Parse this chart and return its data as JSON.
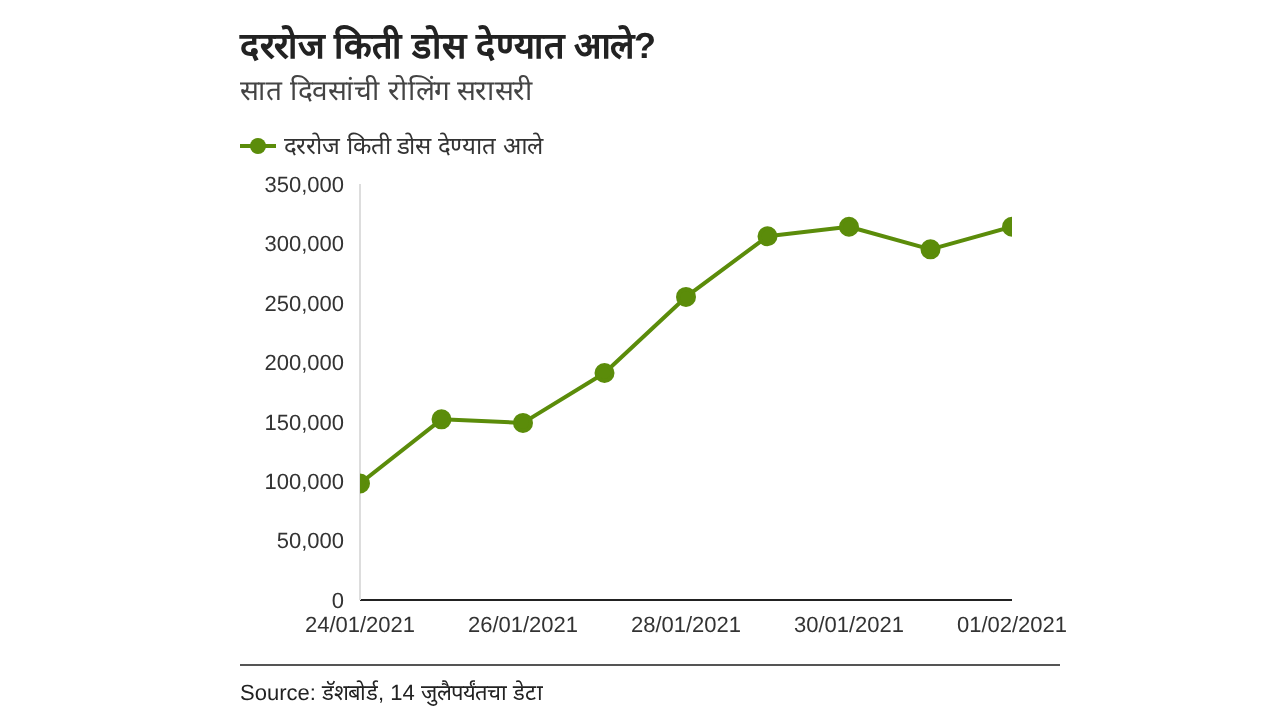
{
  "chart_data": {
    "type": "line",
    "title": "दररोज किती डोस देण्यात आले?",
    "subtitle": "सात दिवसांची रोलिंग सरासरी",
    "x": [
      "2021-01-24",
      "2021-01-25",
      "2021-01-26",
      "2021-01-27",
      "2021-01-28",
      "2021-01-29",
      "2021-01-30",
      "2021-01-31",
      "2021-02-01"
    ],
    "series": [
      {
        "name": "दररोज किती डोस देण्यात आले",
        "color": "#5b8c0a",
        "values": [
          98000,
          152000,
          149000,
          191000,
          255000,
          306000,
          314000,
          295000,
          314000
        ]
      }
    ],
    "xlim": [
      "2021-01-24",
      "2021-02-01"
    ],
    "xticks": [
      {
        "value": "2021-01-24",
        "label": "24/01/2021"
      },
      {
        "value": "2021-01-26",
        "label": "26/01/2021"
      },
      {
        "value": "2021-01-28",
        "label": "28/01/2021"
      },
      {
        "value": "2021-01-30",
        "label": "30/01/2021"
      },
      {
        "value": "2021-02-01",
        "label": "01/02/2021"
      }
    ],
    "ylim": [
      0,
      350000
    ],
    "yticks": [
      {
        "value": 0,
        "label": "0"
      },
      {
        "value": 50000,
        "label": "50,000"
      },
      {
        "value": 100000,
        "label": "100,000"
      },
      {
        "value": 150000,
        "label": "150,000"
      },
      {
        "value": 200000,
        "label": "200,000"
      },
      {
        "value": 250000,
        "label": "250,000"
      },
      {
        "value": 300000,
        "label": "300,000"
      },
      {
        "value": 350000,
        "label": "350,000"
      }
    ],
    "grid": false,
    "legend": "top left",
    "marker": "circle",
    "line_style": "solid",
    "annotations": [
      "Source: डॅशबोर्ड, 14 जुलैपर्यंतचा डेटा"
    ]
  }
}
